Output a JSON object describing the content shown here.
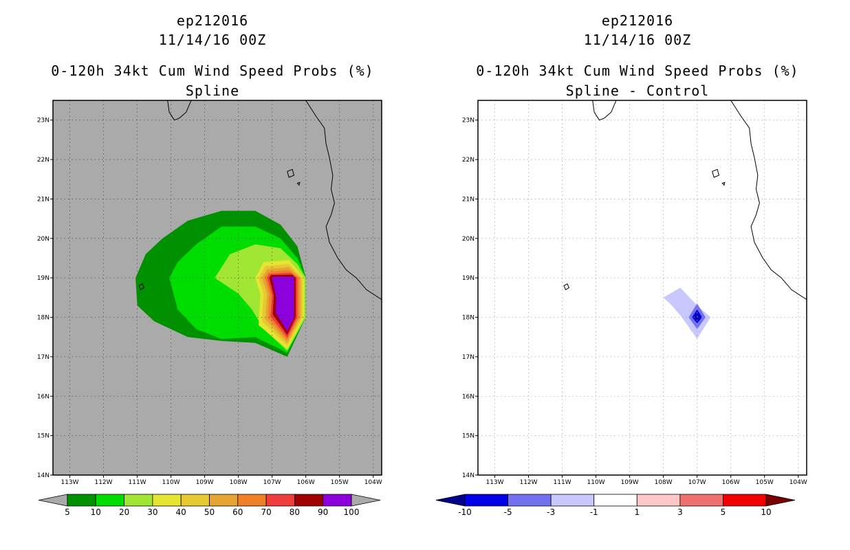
{
  "chart_data": [
    {
      "type": "heatmap",
      "storm_id": "ep212016",
      "datetime": "11/14/16 00Z",
      "title": "0-120h 34kt Cum Wind Speed Probs (%)",
      "subtitle": "Spline",
      "xlabel": "",
      "ylabel": "",
      "xlim": [
        -113.5,
        -103.75
      ],
      "ylim": [
        14.0,
        23.5
      ],
      "grid": true,
      "x_ticks": [
        "113W",
        "112W",
        "111W",
        "110W",
        "109W",
        "108W",
        "107W",
        "106W",
        "105W",
        "104W"
      ],
      "y_ticks": [
        "14N",
        "15N",
        "16N",
        "17N",
        "18N",
        "19N",
        "20N",
        "21N",
        "22N",
        "23N"
      ],
      "colorbar": {
        "labels": [
          "5",
          "10",
          "20",
          "30",
          "40",
          "50",
          "60",
          "70",
          "80",
          "90",
          "100"
        ],
        "colors": [
          "#009100",
          "#00dd00",
          "#a0e632",
          "#e6e632",
          "#e6c832",
          "#e6a532",
          "#f07f28",
          "#f03c3c",
          "#a00000",
          "#8c00dc"
        ],
        "under_color": "#aaaaaa",
        "over_color": "#aaaaaa"
      },
      "contours": [
        {
          "level": 5,
          "color": "#009100",
          "polygon": [
            [
              -110.25,
              20.0
            ],
            [
              -109.5,
              20.45
            ],
            [
              -108.5,
              20.7
            ],
            [
              -107.5,
              20.7
            ],
            [
              -106.75,
              20.35
            ],
            [
              -106.25,
              19.8
            ],
            [
              -106.0,
              19.0
            ],
            [
              -106.0,
              18.0
            ],
            [
              -106.55,
              17.0
            ],
            [
              -107.5,
              17.35
            ],
            [
              -108.5,
              17.4
            ],
            [
              -109.5,
              17.5
            ],
            [
              -110.5,
              17.9
            ],
            [
              -111.0,
              18.3
            ],
            [
              -111.05,
              19.0
            ],
            [
              -110.75,
              19.6
            ]
          ]
        },
        {
          "level": 10,
          "color": "#00dd00",
          "polygon": [
            [
              -109.25,
              19.85
            ],
            [
              -108.5,
              20.3
            ],
            [
              -107.5,
              20.3
            ],
            [
              -106.75,
              20.0
            ],
            [
              -106.25,
              19.5
            ],
            [
              -106.0,
              19.0
            ],
            [
              -106.0,
              18.0
            ],
            [
              -106.55,
              17.1
            ],
            [
              -107.5,
              17.5
            ],
            [
              -108.5,
              17.45
            ],
            [
              -109.25,
              17.7
            ],
            [
              -109.8,
              18.2
            ],
            [
              -110.05,
              19.0
            ],
            [
              -109.8,
              19.4
            ]
          ]
        },
        {
          "level": 20,
          "color": "#a0e632",
          "polygon": [
            [
              -108.25,
              19.6
            ],
            [
              -107.5,
              19.85
            ],
            [
              -106.75,
              19.75
            ],
            [
              -106.25,
              19.35
            ],
            [
              -106.0,
              19.0
            ],
            [
              -106.0,
              18.0
            ],
            [
              -106.55,
              17.15
            ],
            [
              -107.25,
              17.7
            ],
            [
              -107.6,
              18.2
            ],
            [
              -108.0,
              18.6
            ],
            [
              -108.7,
              19.0
            ]
          ]
        },
        {
          "level": 30,
          "color": "#e6e632",
          "polygon": [
            [
              -107.25,
              19.4
            ],
            [
              -106.5,
              19.45
            ],
            [
              -106.05,
              19.0
            ],
            [
              -106.05,
              18.0
            ],
            [
              -106.55,
              17.2
            ],
            [
              -107.4,
              17.8
            ],
            [
              -107.35,
              18.6
            ],
            [
              -107.5,
              19.0
            ]
          ]
        },
        {
          "level": 40,
          "color": "#e6c832",
          "polygon": [
            [
              -107.2,
              19.3
            ],
            [
              -106.5,
              19.35
            ],
            [
              -106.1,
              19.0
            ],
            [
              -106.1,
              18.0
            ],
            [
              -106.55,
              17.28
            ],
            [
              -107.3,
              17.9
            ],
            [
              -107.25,
              18.6
            ],
            [
              -107.4,
              19.0
            ]
          ]
        },
        {
          "level": 50,
          "color": "#e6a532",
          "polygon": [
            [
              -107.15,
              19.22
            ],
            [
              -106.5,
              19.27
            ],
            [
              -106.15,
              19.0
            ],
            [
              -106.15,
              18.0
            ],
            [
              -106.55,
              17.35
            ],
            [
              -107.2,
              17.95
            ],
            [
              -107.15,
              18.6
            ],
            [
              -107.3,
              19.0
            ]
          ]
        },
        {
          "level": 60,
          "color": "#f07f28",
          "polygon": [
            [
              -107.12,
              19.15
            ],
            [
              -106.5,
              19.2
            ],
            [
              -106.2,
              19.0
            ],
            [
              -106.2,
              18.0
            ],
            [
              -106.55,
              17.42
            ],
            [
              -107.12,
              17.98
            ],
            [
              -107.08,
              18.6
            ],
            [
              -107.22,
              19.0
            ]
          ]
        },
        {
          "level": 70,
          "color": "#f03c3c",
          "polygon": [
            [
              -107.08,
              19.1
            ],
            [
              -106.45,
              19.13
            ],
            [
              -106.25,
              19.0
            ],
            [
              -106.25,
              18.0
            ],
            [
              -106.55,
              17.48
            ],
            [
              -107.05,
              18.02
            ],
            [
              -107.0,
              18.55
            ],
            [
              -107.15,
              19.0
            ]
          ]
        },
        {
          "level": 80,
          "color": "#a00000",
          "polygon": [
            [
              -107.03,
              19.07
            ],
            [
              -106.4,
              19.08
            ],
            [
              -106.3,
              19.0
            ],
            [
              -106.3,
              18.0
            ],
            [
              -106.55,
              17.55
            ],
            [
              -106.98,
              18.07
            ],
            [
              -106.95,
              18.55
            ],
            [
              -107.08,
              19.0
            ]
          ]
        },
        {
          "level": 90,
          "color": "#8c00dc",
          "polygon": [
            [
              -106.97,
              19.03
            ],
            [
              -106.35,
              19.03
            ],
            [
              -106.35,
              18.0
            ],
            [
              -106.55,
              17.65
            ],
            [
              -106.9,
              18.12
            ],
            [
              -106.88,
              18.5
            ],
            [
              -107.0,
              19.0
            ]
          ]
        }
      ]
    },
    {
      "type": "heatmap",
      "storm_id": "ep212016",
      "datetime": "11/14/16 00Z",
      "title": "0-120h 34kt Cum Wind Speed Probs (%)",
      "subtitle": "Spline - Control",
      "xlabel": "",
      "ylabel": "",
      "xlim": [
        -113.5,
        -103.75
      ],
      "ylim": [
        14.0,
        23.5
      ],
      "grid": true,
      "x_ticks": [
        "113W",
        "112W",
        "111W",
        "110W",
        "109W",
        "108W",
        "107W",
        "106W",
        "105W",
        "104W"
      ],
      "y_ticks": [
        "14N",
        "15N",
        "16N",
        "17N",
        "18N",
        "19N",
        "20N",
        "21N",
        "22N",
        "23N"
      ],
      "colorbar": {
        "labels": [
          "-10",
          "-5",
          "-3",
          "-1",
          "1",
          "3",
          "5",
          "10"
        ],
        "colors": [
          "#0000e6",
          "#7070f0",
          "#c8c8ff",
          "#ffffff",
          "#ffc8c8",
          "#f07070",
          "#f00000"
        ],
        "under_color": "#00008c",
        "over_color": "#780000"
      },
      "contours": [
        {
          "level": -1,
          "color": "#c8c8ff",
          "polygon": [
            [
              -108.0,
              18.5
            ],
            [
              -107.5,
              18.75
            ],
            [
              -107.0,
              18.3
            ],
            [
              -106.6,
              18.0
            ],
            [
              -107.0,
              17.45
            ],
            [
              -107.45,
              18.0
            ],
            [
              -107.75,
              18.3
            ]
          ]
        },
        {
          "level": -3,
          "color": "#7070f0",
          "polygon": [
            [
              -107.0,
              18.35
            ],
            [
              -106.75,
              18.0
            ],
            [
              -107.0,
              17.7
            ],
            [
              -107.25,
              18.0
            ]
          ]
        },
        {
          "level": -5,
          "color": "#0000e6",
          "polygon": [
            [
              -107.0,
              18.2
            ],
            [
              -106.85,
              18.0
            ],
            [
              -107.0,
              17.85
            ],
            [
              -107.15,
              18.0
            ]
          ]
        },
        {
          "level": -10,
          "color": "#00008c",
          "polygon": [
            [
              -107.0,
              18.08
            ],
            [
              -106.93,
              18.0
            ],
            [
              -107.0,
              17.93
            ],
            [
              -107.07,
              18.0
            ]
          ]
        }
      ]
    }
  ]
}
